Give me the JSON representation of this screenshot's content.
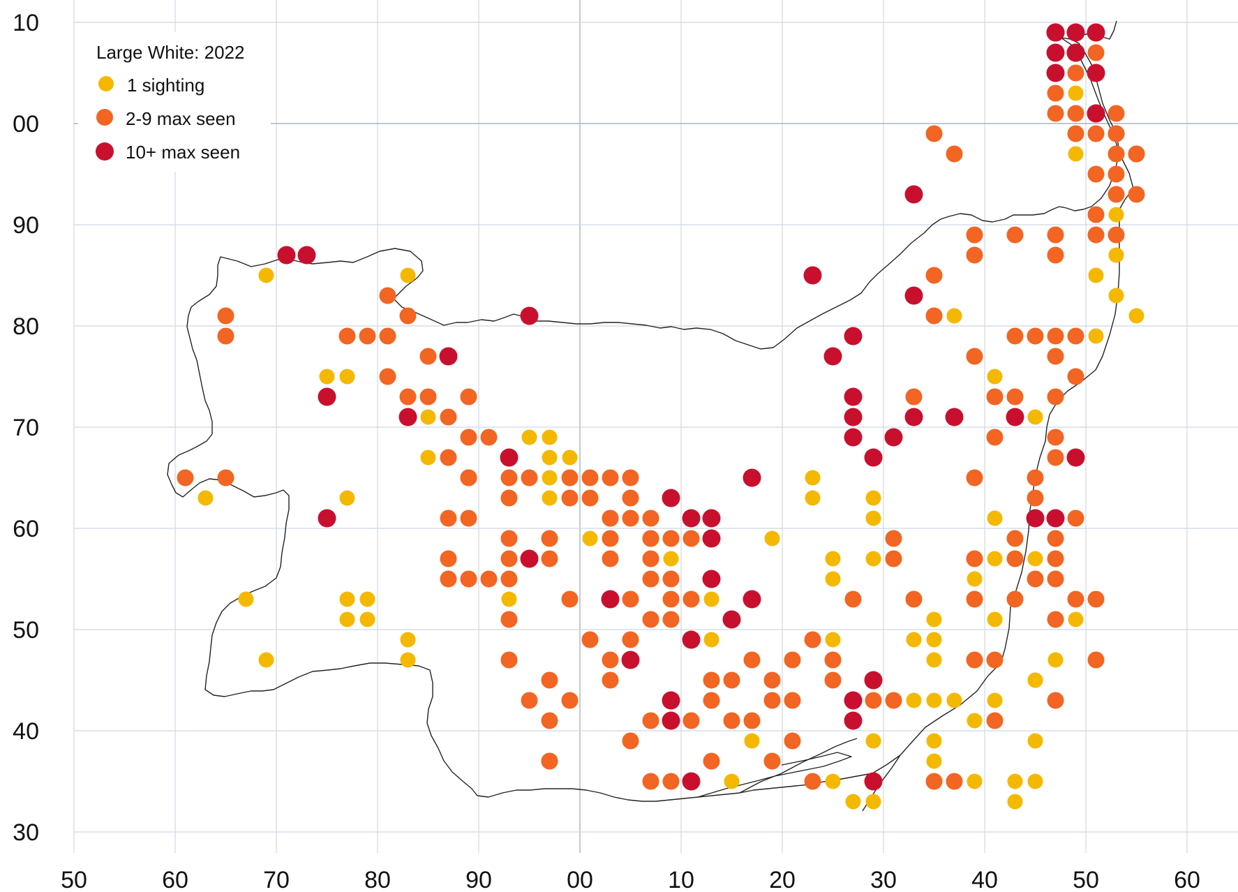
{
  "legend": {
    "title": "Large White:  2022",
    "items": [
      {
        "label": "1 sighting",
        "color": "#f5b800",
        "category": "1"
      },
      {
        "label": "2-9 max seen",
        "color": "#f26522",
        "category": "2-9"
      },
      {
        "label": "10+ max seen",
        "color": "#c8102e",
        "category": "10+"
      }
    ]
  },
  "axes": {
    "x_tick_labels": [
      "50",
      "60",
      "70",
      "80",
      "90",
      "00",
      "10",
      "20",
      "30",
      "40",
      "50",
      "60"
    ],
    "y_tick_labels": [
      "10",
      "00",
      "90",
      "80",
      "70",
      "60",
      "50",
      "40",
      "30"
    ]
  },
  "chart_data": {
    "type": "scatter",
    "title": "Large White:  2022",
    "x_unit": "km easting index (tick 50 = 0, each tick = 10)",
    "y_unit": "km northing index (tick 30 = 0, each tick = 10)",
    "xlim": [
      0,
      110
    ],
    "ylim": [
      0,
      80
    ],
    "series": [
      {
        "name": "1 sighting",
        "color": "#f5b800",
        "points": [
          [
            19,
            55
          ],
          [
            33,
            55
          ],
          [
            13,
            33
          ],
          [
            25,
            45
          ],
          [
            27,
            45
          ],
          [
            27,
            33
          ],
          [
            35,
            41
          ],
          [
            35,
            37
          ],
          [
            45,
            39
          ],
          [
            47,
            39
          ],
          [
            47,
            37
          ],
          [
            47,
            35
          ],
          [
            47,
            33
          ],
          [
            49,
            37
          ],
          [
            49,
            35
          ],
          [
            55,
            35
          ],
          [
            51,
            29
          ],
          [
            51,
            19
          ],
          [
            59,
            29
          ],
          [
            59,
            27
          ],
          [
            61,
            29
          ],
          [
            63,
            23
          ],
          [
            63,
            19
          ],
          [
            69,
            29
          ],
          [
            67,
            35
          ],
          [
            65,
            5
          ],
          [
            67,
            9
          ],
          [
            71,
            9
          ],
          [
            77,
            3
          ],
          [
            75,
            5
          ],
          [
            79,
            3
          ],
          [
            91,
            45
          ],
          [
            29,
            23
          ],
          [
            29,
            21
          ],
          [
            17,
            23
          ],
          [
            19,
            17
          ],
          [
            27,
            23
          ],
          [
            27,
            21
          ],
          [
            33,
            19
          ],
          [
            33,
            17
          ],
          [
            43,
            23
          ],
          [
            43,
            21
          ],
          [
            73,
            35
          ],
          [
            73,
            33
          ],
          [
            75,
            15
          ],
          [
            83,
            19
          ],
          [
            85,
            7
          ],
          [
            87,
            5
          ],
          [
            79,
            9
          ],
          [
            75,
            27
          ],
          [
            75,
            25
          ],
          [
            79,
            27
          ],
          [
            77,
            23
          ],
          [
            75,
            19
          ],
          [
            83,
            13
          ],
          [
            85,
            9
          ],
          [
            87,
            13
          ],
          [
            89,
            11
          ],
          [
            91,
            13
          ],
          [
            93,
            5
          ],
          [
            93,
            3
          ],
          [
            95,
            5
          ],
          [
            89,
            5
          ],
          [
            95,
            15
          ],
          [
            95,
            27
          ],
          [
            97,
            27
          ],
          [
            97,
            25
          ],
          [
            99,
            21
          ],
          [
            97,
            17
          ],
          [
            95,
            15
          ],
          [
            105,
            51
          ],
          [
            87,
            51
          ],
          [
            79,
            33
          ],
          [
            79,
            31
          ],
          [
            85,
            21
          ],
          [
            85,
            19
          ],
          [
            85,
            17
          ],
          [
            85,
            13
          ],
          [
            89,
            17
          ],
          [
            91,
            31
          ],
          [
            91,
            27
          ],
          [
            89,
            25
          ],
          [
            95,
            9
          ],
          [
            91,
            21
          ],
          [
            103,
            61
          ],
          [
            103,
            59
          ],
          [
            101,
            65
          ],
          [
            99,
            67
          ],
          [
            99,
            75
          ],
          [
            99,
            73
          ],
          [
            101,
            55
          ],
          [
            101,
            49
          ],
          [
            97,
            57
          ],
          [
            95,
            41
          ],
          [
            95,
            35
          ],
          [
            103,
            53
          ],
          [
            103,
            57
          ]
        ]
      },
      {
        "name": "2-9 max seen",
        "color": "#f26522",
        "points": [
          [
            11,
            35
          ],
          [
            15,
            35
          ],
          [
            15,
            51
          ],
          [
            15,
            49
          ],
          [
            27,
            49
          ],
          [
            29,
            49
          ],
          [
            31,
            53
          ],
          [
            33,
            51
          ],
          [
            31,
            49
          ],
          [
            31,
            45
          ],
          [
            33,
            43
          ],
          [
            35,
            43
          ],
          [
            37,
            41
          ],
          [
            37,
            37
          ],
          [
            39,
            35
          ],
          [
            39,
            43
          ],
          [
            35,
            47
          ],
          [
            37,
            47
          ],
          [
            39,
            39
          ],
          [
            41,
            39
          ],
          [
            39,
            35
          ],
          [
            37,
            31
          ],
          [
            37,
            27
          ],
          [
            39,
            31
          ],
          [
            37,
            25
          ],
          [
            39,
            25
          ],
          [
            43,
            33
          ],
          [
            43,
            29
          ],
          [
            43,
            27
          ],
          [
            43,
            25
          ],
          [
            41,
            25
          ],
          [
            43,
            21
          ],
          [
            43,
            17
          ],
          [
            45,
            13
          ],
          [
            47,
            11
          ],
          [
            49,
            13
          ],
          [
            47,
            7
          ],
          [
            49,
            23
          ],
          [
            47,
            29
          ],
          [
            47,
            27
          ],
          [
            45,
            35
          ],
          [
            43,
            35
          ],
          [
            49,
            35
          ],
          [
            51,
            35
          ],
          [
            53,
            35
          ],
          [
            49,
            33
          ],
          [
            51,
            33
          ],
          [
            55,
            35
          ],
          [
            53,
            31
          ],
          [
            53,
            29
          ],
          [
            53,
            27
          ],
          [
            57,
            29
          ],
          [
            57,
            25
          ],
          [
            59,
            25
          ],
          [
            63,
            31
          ],
          [
            63,
            29
          ],
          [
            61,
            29
          ],
          [
            59,
            33
          ],
          [
            63,
            25
          ],
          [
            61,
            23
          ],
          [
            57,
            21
          ],
          [
            59,
            21
          ],
          [
            57,
            29
          ],
          [
            59,
            29
          ],
          [
            57,
            31
          ],
          [
            55,
            33
          ],
          [
            57,
            27
          ],
          [
            59,
            23
          ],
          [
            55,
            31
          ],
          [
            53,
            31
          ],
          [
            55,
            23
          ],
          [
            51,
            19
          ],
          [
            47,
            15
          ],
          [
            47,
            7
          ],
          [
            53,
            15
          ],
          [
            55,
            19
          ],
          [
            55,
            17
          ],
          [
            53,
            17
          ],
          [
            57,
            11
          ],
          [
            59,
            11
          ],
          [
            55,
            9
          ],
          [
            57,
            5
          ],
          [
            59,
            5
          ],
          [
            61,
            11
          ],
          [
            63,
            15
          ],
          [
            63,
            13
          ],
          [
            63,
            7
          ],
          [
            65,
            11
          ],
          [
            65,
            15
          ],
          [
            69,
            7
          ],
          [
            69,
            15
          ],
          [
            69,
            13
          ],
          [
            67,
            11
          ],
          [
            67,
            17
          ],
          [
            71,
            13
          ],
          [
            71,
            9
          ],
          [
            73,
            5
          ],
          [
            71,
            17
          ],
          [
            75,
            15
          ],
          [
            75,
            17
          ],
          [
            73,
            19
          ],
          [
            77,
            23
          ],
          [
            81,
            27
          ],
          [
            81,
            29
          ],
          [
            79,
            15
          ],
          [
            79,
            13
          ],
          [
            81,
            13
          ],
          [
            85,
            5
          ],
          [
            87,
            5
          ],
          [
            83,
            23
          ],
          [
            83,
            43
          ],
          [
            85,
            51
          ],
          [
            85,
            55
          ],
          [
            89,
            57
          ],
          [
            87,
            67
          ],
          [
            85,
            69
          ],
          [
            89,
            47
          ],
          [
            99,
            45
          ],
          [
            93,
            43
          ],
          [
            91,
            39
          ],
          [
            91,
            43
          ],
          [
            89,
            35
          ],
          [
            89,
            27
          ],
          [
            89,
            23
          ],
          [
            89,
            17
          ],
          [
            91,
            17
          ],
          [
            95,
            25
          ],
          [
            97,
            21
          ],
          [
            97,
            13
          ],
          [
            101,
            23
          ],
          [
            101,
            17
          ],
          [
            99,
            23
          ],
          [
            99,
            31
          ],
          [
            97,
            29
          ],
          [
            97,
            27
          ],
          [
            97,
            25
          ],
          [
            95,
            31
          ],
          [
            95,
            33
          ],
          [
            95,
            35
          ],
          [
            97,
            37
          ],
          [
            97,
            39
          ],
          [
            97,
            43
          ],
          [
            97,
            49
          ],
          [
            95,
            49
          ],
          [
            97,
            47
          ],
          [
            99,
            49
          ],
          [
            97,
            57
          ],
          [
            97,
            59
          ],
          [
            101,
            59
          ],
          [
            103,
            59
          ],
          [
            101,
            61
          ],
          [
            103,
            63
          ],
          [
            103,
            67
          ],
          [
            105,
            67
          ],
          [
            103,
            69
          ],
          [
            101,
            69
          ],
          [
            99,
            71
          ],
          [
            99,
            69
          ],
          [
            97,
            71
          ],
          [
            97,
            73
          ],
          [
            97,
            75
          ],
          [
            99,
            75
          ],
          [
            99,
            79
          ],
          [
            101,
            79
          ],
          [
            101,
            77
          ],
          [
            103,
            71
          ],
          [
            103,
            69
          ],
          [
            105,
            67
          ],
          [
            103,
            65
          ],
          [
            105,
            63
          ],
          [
            101,
            65
          ],
          [
            93,
            59
          ],
          [
            89,
            59
          ],
          [
            93,
            49
          ],
          [
            93,
            27
          ],
          [
            93,
            29
          ],
          [
            93,
            23
          ],
          [
            91,
            11
          ]
        ]
      },
      {
        "name": "10+ max seen",
        "color": "#c8102e",
        "points": [
          [
            21,
            57
          ],
          [
            23,
            57
          ],
          [
            25,
            43
          ],
          [
            25,
            31
          ],
          [
            33,
            41
          ],
          [
            37,
            47
          ],
          [
            45,
            51
          ],
          [
            43,
            37
          ],
          [
            45,
            27
          ],
          [
            53,
            23
          ],
          [
            59,
            33
          ],
          [
            61,
            31
          ],
          [
            63,
            31
          ],
          [
            65,
            21
          ],
          [
            63,
            25
          ],
          [
            55,
            17
          ],
          [
            63,
            29
          ],
          [
            67,
            23
          ],
          [
            61,
            19
          ],
          [
            59,
            13
          ],
          [
            59,
            11
          ],
          [
            61,
            5
          ],
          [
            67,
            35
          ],
          [
            77,
            49
          ],
          [
            75,
            47
          ],
          [
            77,
            43
          ],
          [
            77,
            41
          ],
          [
            77,
            39
          ],
          [
            83,
            41
          ],
          [
            79,
            37
          ],
          [
            83,
            63
          ],
          [
            79,
            5
          ],
          [
            77,
            13
          ],
          [
            77,
            11
          ],
          [
            93,
            41
          ],
          [
            87,
            41
          ],
          [
            81,
            39
          ],
          [
            79,
            15
          ],
          [
            95,
            31
          ],
          [
            97,
            31
          ],
          [
            97,
            79
          ],
          [
            99,
            79
          ],
          [
            97,
            77
          ],
          [
            99,
            77
          ],
          [
            101,
            79
          ],
          [
            101,
            75
          ],
          [
            101,
            71
          ],
          [
            97,
            75
          ],
          [
            97,
            79
          ],
          [
            99,
            77
          ],
          [
            101,
            71
          ],
          [
            99,
            37
          ],
          [
            83,
            53
          ],
          [
            73,
            55
          ]
        ]
      }
    ]
  }
}
